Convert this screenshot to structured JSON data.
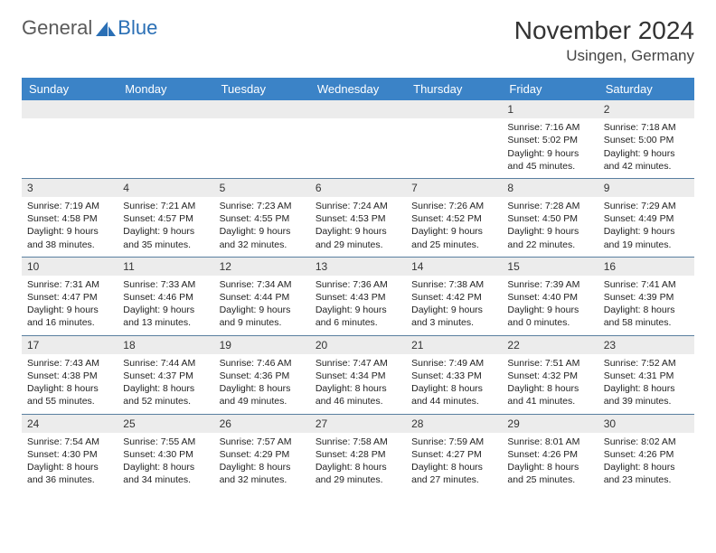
{
  "brand": {
    "part1": "General",
    "part2": "Blue"
  },
  "title": "November 2024",
  "location": "Usingen, Germany",
  "colors": {
    "header_bg": "#3b83c7",
    "header_text": "#ffffff",
    "separator": "#5a7fa0",
    "daynum_bg": "#ececec",
    "brand_gray": "#5a5a5a",
    "brand_blue": "#2a6fb5",
    "page_bg": "#ffffff"
  },
  "weekdays": [
    "Sunday",
    "Monday",
    "Tuesday",
    "Wednesday",
    "Thursday",
    "Friday",
    "Saturday"
  ],
  "weeks": [
    [
      null,
      null,
      null,
      null,
      null,
      {
        "n": "1",
        "sr": "Sunrise: 7:16 AM",
        "ss": "Sunset: 5:02 PM",
        "d1": "Daylight: 9 hours",
        "d2": "and 45 minutes."
      },
      {
        "n": "2",
        "sr": "Sunrise: 7:18 AM",
        "ss": "Sunset: 5:00 PM",
        "d1": "Daylight: 9 hours",
        "d2": "and 42 minutes."
      }
    ],
    [
      {
        "n": "3",
        "sr": "Sunrise: 7:19 AM",
        "ss": "Sunset: 4:58 PM",
        "d1": "Daylight: 9 hours",
        "d2": "and 38 minutes."
      },
      {
        "n": "4",
        "sr": "Sunrise: 7:21 AM",
        "ss": "Sunset: 4:57 PM",
        "d1": "Daylight: 9 hours",
        "d2": "and 35 minutes."
      },
      {
        "n": "5",
        "sr": "Sunrise: 7:23 AM",
        "ss": "Sunset: 4:55 PM",
        "d1": "Daylight: 9 hours",
        "d2": "and 32 minutes."
      },
      {
        "n": "6",
        "sr": "Sunrise: 7:24 AM",
        "ss": "Sunset: 4:53 PM",
        "d1": "Daylight: 9 hours",
        "d2": "and 29 minutes."
      },
      {
        "n": "7",
        "sr": "Sunrise: 7:26 AM",
        "ss": "Sunset: 4:52 PM",
        "d1": "Daylight: 9 hours",
        "d2": "and 25 minutes."
      },
      {
        "n": "8",
        "sr": "Sunrise: 7:28 AM",
        "ss": "Sunset: 4:50 PM",
        "d1": "Daylight: 9 hours",
        "d2": "and 22 minutes."
      },
      {
        "n": "9",
        "sr": "Sunrise: 7:29 AM",
        "ss": "Sunset: 4:49 PM",
        "d1": "Daylight: 9 hours",
        "d2": "and 19 minutes."
      }
    ],
    [
      {
        "n": "10",
        "sr": "Sunrise: 7:31 AM",
        "ss": "Sunset: 4:47 PM",
        "d1": "Daylight: 9 hours",
        "d2": "and 16 minutes."
      },
      {
        "n": "11",
        "sr": "Sunrise: 7:33 AM",
        "ss": "Sunset: 4:46 PM",
        "d1": "Daylight: 9 hours",
        "d2": "and 13 minutes."
      },
      {
        "n": "12",
        "sr": "Sunrise: 7:34 AM",
        "ss": "Sunset: 4:44 PM",
        "d1": "Daylight: 9 hours",
        "d2": "and 9 minutes."
      },
      {
        "n": "13",
        "sr": "Sunrise: 7:36 AM",
        "ss": "Sunset: 4:43 PM",
        "d1": "Daylight: 9 hours",
        "d2": "and 6 minutes."
      },
      {
        "n": "14",
        "sr": "Sunrise: 7:38 AM",
        "ss": "Sunset: 4:42 PM",
        "d1": "Daylight: 9 hours",
        "d2": "and 3 minutes."
      },
      {
        "n": "15",
        "sr": "Sunrise: 7:39 AM",
        "ss": "Sunset: 4:40 PM",
        "d1": "Daylight: 9 hours",
        "d2": "and 0 minutes."
      },
      {
        "n": "16",
        "sr": "Sunrise: 7:41 AM",
        "ss": "Sunset: 4:39 PM",
        "d1": "Daylight: 8 hours",
        "d2": "and 58 minutes."
      }
    ],
    [
      {
        "n": "17",
        "sr": "Sunrise: 7:43 AM",
        "ss": "Sunset: 4:38 PM",
        "d1": "Daylight: 8 hours",
        "d2": "and 55 minutes."
      },
      {
        "n": "18",
        "sr": "Sunrise: 7:44 AM",
        "ss": "Sunset: 4:37 PM",
        "d1": "Daylight: 8 hours",
        "d2": "and 52 minutes."
      },
      {
        "n": "19",
        "sr": "Sunrise: 7:46 AM",
        "ss": "Sunset: 4:36 PM",
        "d1": "Daylight: 8 hours",
        "d2": "and 49 minutes."
      },
      {
        "n": "20",
        "sr": "Sunrise: 7:47 AM",
        "ss": "Sunset: 4:34 PM",
        "d1": "Daylight: 8 hours",
        "d2": "and 46 minutes."
      },
      {
        "n": "21",
        "sr": "Sunrise: 7:49 AM",
        "ss": "Sunset: 4:33 PM",
        "d1": "Daylight: 8 hours",
        "d2": "and 44 minutes."
      },
      {
        "n": "22",
        "sr": "Sunrise: 7:51 AM",
        "ss": "Sunset: 4:32 PM",
        "d1": "Daylight: 8 hours",
        "d2": "and 41 minutes."
      },
      {
        "n": "23",
        "sr": "Sunrise: 7:52 AM",
        "ss": "Sunset: 4:31 PM",
        "d1": "Daylight: 8 hours",
        "d2": "and 39 minutes."
      }
    ],
    [
      {
        "n": "24",
        "sr": "Sunrise: 7:54 AM",
        "ss": "Sunset: 4:30 PM",
        "d1": "Daylight: 8 hours",
        "d2": "and 36 minutes."
      },
      {
        "n": "25",
        "sr": "Sunrise: 7:55 AM",
        "ss": "Sunset: 4:30 PM",
        "d1": "Daylight: 8 hours",
        "d2": "and 34 minutes."
      },
      {
        "n": "26",
        "sr": "Sunrise: 7:57 AM",
        "ss": "Sunset: 4:29 PM",
        "d1": "Daylight: 8 hours",
        "d2": "and 32 minutes."
      },
      {
        "n": "27",
        "sr": "Sunrise: 7:58 AM",
        "ss": "Sunset: 4:28 PM",
        "d1": "Daylight: 8 hours",
        "d2": "and 29 minutes."
      },
      {
        "n": "28",
        "sr": "Sunrise: 7:59 AM",
        "ss": "Sunset: 4:27 PM",
        "d1": "Daylight: 8 hours",
        "d2": "and 27 minutes."
      },
      {
        "n": "29",
        "sr": "Sunrise: 8:01 AM",
        "ss": "Sunset: 4:26 PM",
        "d1": "Daylight: 8 hours",
        "d2": "and 25 minutes."
      },
      {
        "n": "30",
        "sr": "Sunrise: 8:02 AM",
        "ss": "Sunset: 4:26 PM",
        "d1": "Daylight: 8 hours",
        "d2": "and 23 minutes."
      }
    ]
  ]
}
